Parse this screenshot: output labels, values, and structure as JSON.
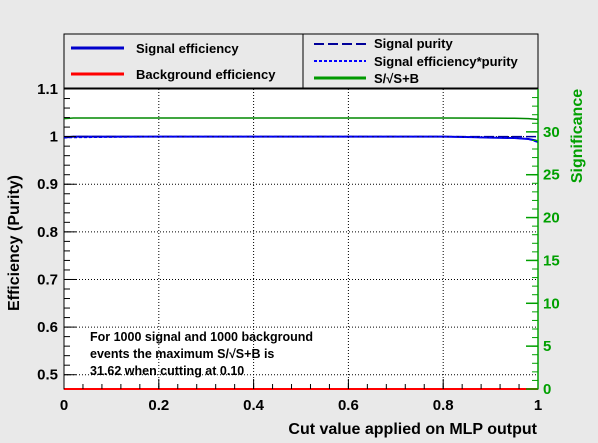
{
  "chart_data": {
    "type": "line",
    "xlabel": "Cut value applied on MLP output",
    "ylabel": "Efficiency (Purity)",
    "y2label": "Significance",
    "xlim": [
      0,
      1
    ],
    "ylim": [
      0.47,
      1.1
    ],
    "y2lim": [
      0,
      35
    ],
    "x_ticks": [
      0,
      0.2,
      0.4,
      0.6,
      0.8,
      1
    ],
    "x_tick_labels": [
      "0",
      "0.2",
      "0.4",
      "0.6",
      "0.8",
      "1"
    ],
    "y_ticks": [
      0.5,
      0.6,
      0.7,
      0.8,
      0.9,
      1.0,
      1.1
    ],
    "y_tick_labels": [
      "0.5",
      "0.6",
      "0.7",
      "0.8",
      "0.9",
      "1",
      "1.1"
    ],
    "y2_ticks": [
      0,
      5,
      10,
      15,
      20,
      25,
      30
    ],
    "y2_tick_labels": [
      "0",
      "5",
      "10",
      "15",
      "20",
      "25",
      "30"
    ],
    "grid": true,
    "legend_position": "top",
    "series": [
      {
        "name": "Signal efficiency",
        "color": "#0000cc",
        "style": "solid",
        "axis": "left",
        "x": [
          0,
          0.02,
          0.05,
          0.2,
          0.4,
          0.6,
          0.8,
          0.86,
          0.9,
          0.95,
          0.98,
          0.995,
          1.0
        ],
        "y": [
          0.998,
          1.0,
          1.0,
          1.0,
          1.0,
          1.0,
          1.0,
          0.999,
          0.998,
          0.997,
          0.995,
          0.992,
          0.988
        ]
      },
      {
        "name": "Background efficiency",
        "color": "#ff0000",
        "style": "solid",
        "axis": "left",
        "x": [
          0,
          0.2,
          0.4,
          0.6,
          0.8,
          1.0
        ],
        "y": [
          0,
          0,
          0,
          0,
          0,
          0
        ]
      },
      {
        "name": "Signal purity",
        "color": "#000099",
        "style": "dashed",
        "axis": "left",
        "x": [
          0,
          0.2,
          0.4,
          0.6,
          0.8,
          1.0
        ],
        "y": [
          1.0,
          1.0,
          1.0,
          1.0,
          1.0,
          1.0
        ]
      },
      {
        "name": "Signal efficiency*purity",
        "color": "#0000ff",
        "style": "dotted",
        "axis": "left",
        "x": [
          0,
          0.2,
          0.4,
          0.6,
          0.8,
          0.9,
          0.95,
          0.98,
          1.0
        ],
        "y": [
          0.998,
          1.0,
          1.0,
          1.0,
          1.0,
          0.998,
          0.997,
          0.995,
          0.988
        ]
      },
      {
        "name": "S/√S+B",
        "color": "#008800",
        "style": "solid",
        "axis": "right",
        "x": [
          0,
          0.02,
          0.05,
          0.2,
          0.4,
          0.6,
          0.8,
          0.9,
          0.95,
          0.98,
          1.0
        ],
        "y": [
          31.55,
          31.62,
          31.62,
          31.62,
          31.62,
          31.62,
          31.62,
          31.6,
          31.58,
          31.55,
          31.45
        ]
      }
    ],
    "annotation": {
      "lines": [
        "For 1000 signal and 1000 background",
        "events the maximum S/√S+B is",
        "31.62 when cutting at  0.10"
      ]
    }
  }
}
